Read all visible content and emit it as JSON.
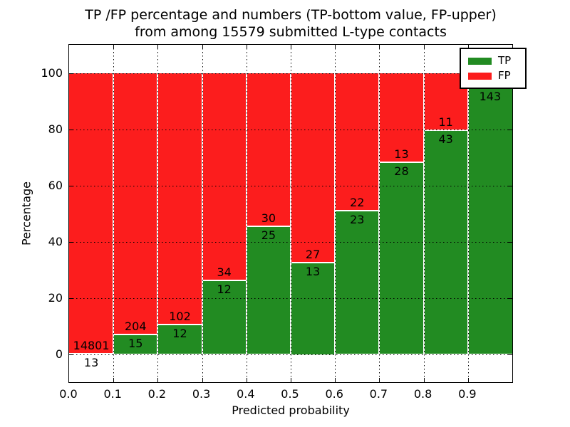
{
  "figure": {
    "title_line1": "TP /FP percentage and numbers (TP-bottom value, FP-upper)",
    "title_line2": "from among 15579 submitted L-type contacts",
    "xlabel": "Predicted probability",
    "ylabel": "Percentage"
  },
  "legend": {
    "items": [
      {
        "label": "TP",
        "color": "#228b22"
      },
      {
        "label": "FP",
        "color": "#fc1d1d"
      }
    ]
  },
  "chart_data": {
    "type": "bar",
    "stacked": true,
    "title": "TP /FP percentage and numbers (TP-bottom value, FP-upper)\nfrom among 15579 submitted L-type contacts",
    "xlabel": "Predicted probability",
    "ylabel": "Percentage",
    "xlim": [
      0.0,
      1.0
    ],
    "ylim": [
      -10,
      110
    ],
    "x_tick_labels": [
      "0.0",
      "0.1",
      "0.2",
      "0.3",
      "0.4",
      "0.5",
      "0.6",
      "0.7",
      "0.8",
      "0.9"
    ],
    "y_ticks": [
      0,
      20,
      40,
      60,
      80,
      100
    ],
    "grid": true,
    "legend_position": "upper right",
    "total_contacts": 15579,
    "bin_width": 0.1,
    "bins": [
      {
        "x_start": 0.0,
        "tp_count": 13,
        "fp_count": 14801,
        "tp_pct": 0.09,
        "tp_label": "13",
        "fp_label": "14801"
      },
      {
        "x_start": 0.1,
        "tp_count": 15,
        "fp_count": 204,
        "tp_pct": 6.85,
        "tp_label": "15",
        "fp_label": "204"
      },
      {
        "x_start": 0.2,
        "tp_count": 12,
        "fp_count": 102,
        "tp_pct": 10.53,
        "tp_label": "12",
        "fp_label": "102"
      },
      {
        "x_start": 0.3,
        "tp_count": 12,
        "fp_count": 34,
        "tp_pct": 26.09,
        "tp_label": "12",
        "fp_label": "34"
      },
      {
        "x_start": 0.4,
        "tp_count": 25,
        "fp_count": 30,
        "tp_pct": 45.45,
        "tp_label": "25",
        "fp_label": "30"
      },
      {
        "x_start": 0.5,
        "tp_count": 13,
        "fp_count": 27,
        "tp_pct": 32.5,
        "tp_label": "13",
        "fp_label": "27"
      },
      {
        "x_start": 0.6,
        "tp_count": 23,
        "fp_count": 22,
        "tp_pct": 51.11,
        "tp_label": "23",
        "fp_label": "22"
      },
      {
        "x_start": 0.7,
        "tp_count": 28,
        "fp_count": 13,
        "tp_pct": 68.29,
        "tp_label": "28",
        "fp_label": "13"
      },
      {
        "x_start": 0.8,
        "tp_count": 43,
        "fp_count": 11,
        "tp_pct": 79.63,
        "tp_label": "43",
        "fp_label": "11"
      },
      {
        "x_start": 0.9,
        "tp_count": 143,
        "fp_count": null,
        "tp_pct": 94.7,
        "tp_label": "143",
        "fp_label": null
      }
    ],
    "series": [
      {
        "name": "TP",
        "color": "#228b22"
      },
      {
        "name": "FP",
        "color": "#fc1d1d"
      }
    ]
  }
}
